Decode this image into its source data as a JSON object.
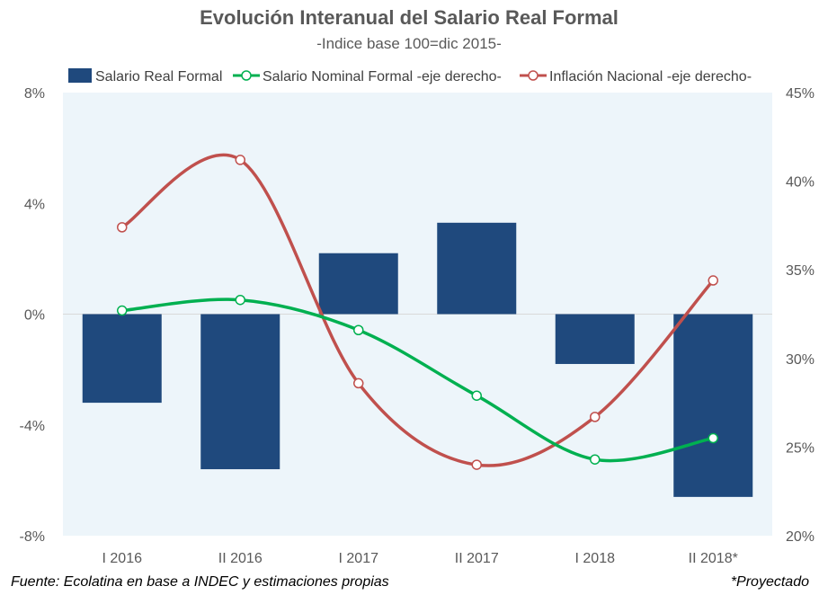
{
  "chart_data": {
    "type": "bar",
    "title": "Evolución Interanual del Salario Real Formal",
    "subtitle": "-Indice base 100=dic 2015-",
    "categories": [
      "I 2016",
      "II 2016",
      "I 2017",
      "II 2017",
      "I 2018",
      "II 2018*"
    ],
    "series": [
      {
        "name": "Salario Real Formal",
        "type": "bar",
        "axis": "left",
        "color": "#1f497d",
        "values": [
          -3.2,
          -5.6,
          2.2,
          3.3,
          -1.8,
          -6.6
        ]
      },
      {
        "name": "Salario Nominal Formal -eje derecho-",
        "type": "line",
        "axis": "right",
        "color": "#00b050",
        "values": [
          32.7,
          33.3,
          31.6,
          27.9,
          24.3,
          25.5
        ]
      },
      {
        "name": "Inflación Nacional -eje derecho-",
        "type": "line",
        "axis": "right",
        "color": "#c0504d",
        "values": [
          37.4,
          41.2,
          28.6,
          24.0,
          26.7,
          34.4
        ]
      }
    ],
    "y_left": {
      "min": -8,
      "max": 8,
      "ticks": [
        "8%",
        "4%",
        "0%",
        "-4%",
        "-8%"
      ],
      "tick_values": [
        8,
        4,
        0,
        -4,
        -8
      ],
      "negative_color": "#c00000"
    },
    "y_right": {
      "min": 20,
      "max": 45,
      "ticks": [
        "45%",
        "40%",
        "35%",
        "30%",
        "25%",
        "20%"
      ],
      "tick_values": [
        45,
        40,
        35,
        30,
        25,
        20
      ]
    },
    "legend_position": "top",
    "grid": "horizontal-zero-line",
    "plot_background": "#edf5fa"
  },
  "footer": {
    "source": "Fuente: Ecolatina en base a INDEC y estimaciones propias",
    "note": "*Proyectado"
  }
}
